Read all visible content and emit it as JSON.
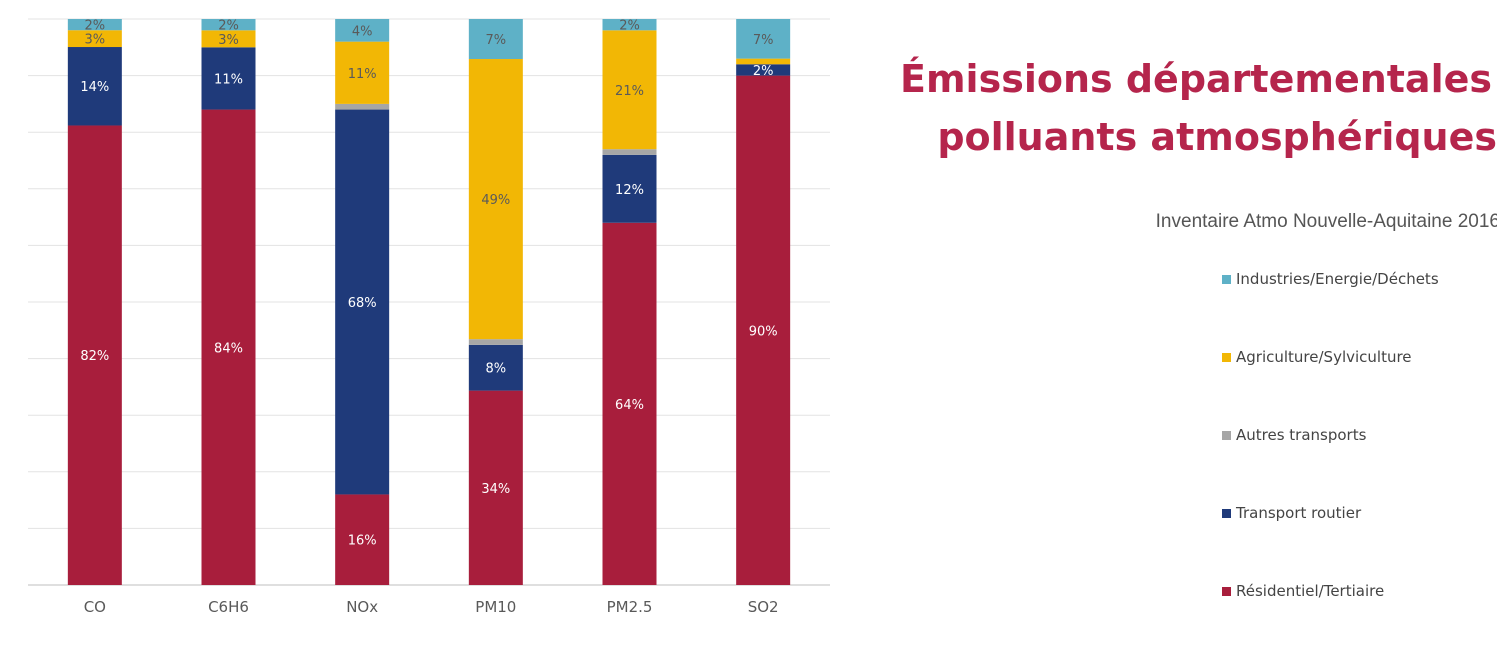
{
  "chart_data": {
    "type": "bar",
    "stacked": true,
    "categories": [
      "CO",
      "C6H6",
      "NOx",
      "PM10",
      "PM2.5",
      "SO2"
    ],
    "series": [
      {
        "name": "Résidentiel/Tertiaire",
        "color": "#a81e3c",
        "values": [
          82,
          84,
          16,
          34,
          64,
          90
        ],
        "labels": [
          "82%",
          "84%",
          "16%",
          "34%",
          "64%",
          "90%"
        ]
      },
      {
        "name": "Transport routier",
        "color": "#1f3a7a",
        "values": [
          14,
          11,
          68,
          8,
          12,
          2
        ],
        "labels": [
          "14%",
          "11%",
          "68%",
          "8%",
          "12%",
          "2%"
        ]
      },
      {
        "name": "Autres transports",
        "color": "#a6a6a6",
        "values": [
          0,
          0,
          1,
          1,
          1,
          0
        ],
        "labels": [
          "",
          "",
          "",
          "",
          "",
          ""
        ]
      },
      {
        "name": "Agriculture/Sylviculture",
        "color": "#f2b705",
        "values": [
          3,
          3,
          11,
          49,
          21,
          1
        ],
        "labels": [
          "3%",
          "3%",
          "11%",
          "49%",
          "21%",
          ""
        ]
      },
      {
        "name": "Industries/Energie/Déchets",
        "color": "#5eb1c7",
        "values": [
          2,
          2,
          4,
          7,
          2,
          7
        ],
        "labels": [
          "2%",
          "2%",
          "4%",
          "7%",
          "2%",
          "7%"
        ]
      }
    ],
    "title": "Émissions départementales de polluants atmosphériques",
    "subtitle": "Inventaire Atmo Nouvelle-Aquitaine 2016",
    "ylim": [
      0,
      100
    ],
    "grid": true,
    "legend": "right"
  },
  "title_lines": [
    "Émissions départementales de",
    "polluants atmosphériques"
  ],
  "legend_items": [
    {
      "label": "Industries/Energie/Déchets",
      "color": "#5eb1c7"
    },
    {
      "label": "Agriculture/Sylviculture",
      "color": "#f2b705"
    },
    {
      "label": "Autres transports",
      "color": "#a6a6a6"
    },
    {
      "label": "Transport routier",
      "color": "#1f3a7a"
    },
    {
      "label": "Résidentiel/Tertiaire",
      "color": "#a81e3c"
    }
  ]
}
